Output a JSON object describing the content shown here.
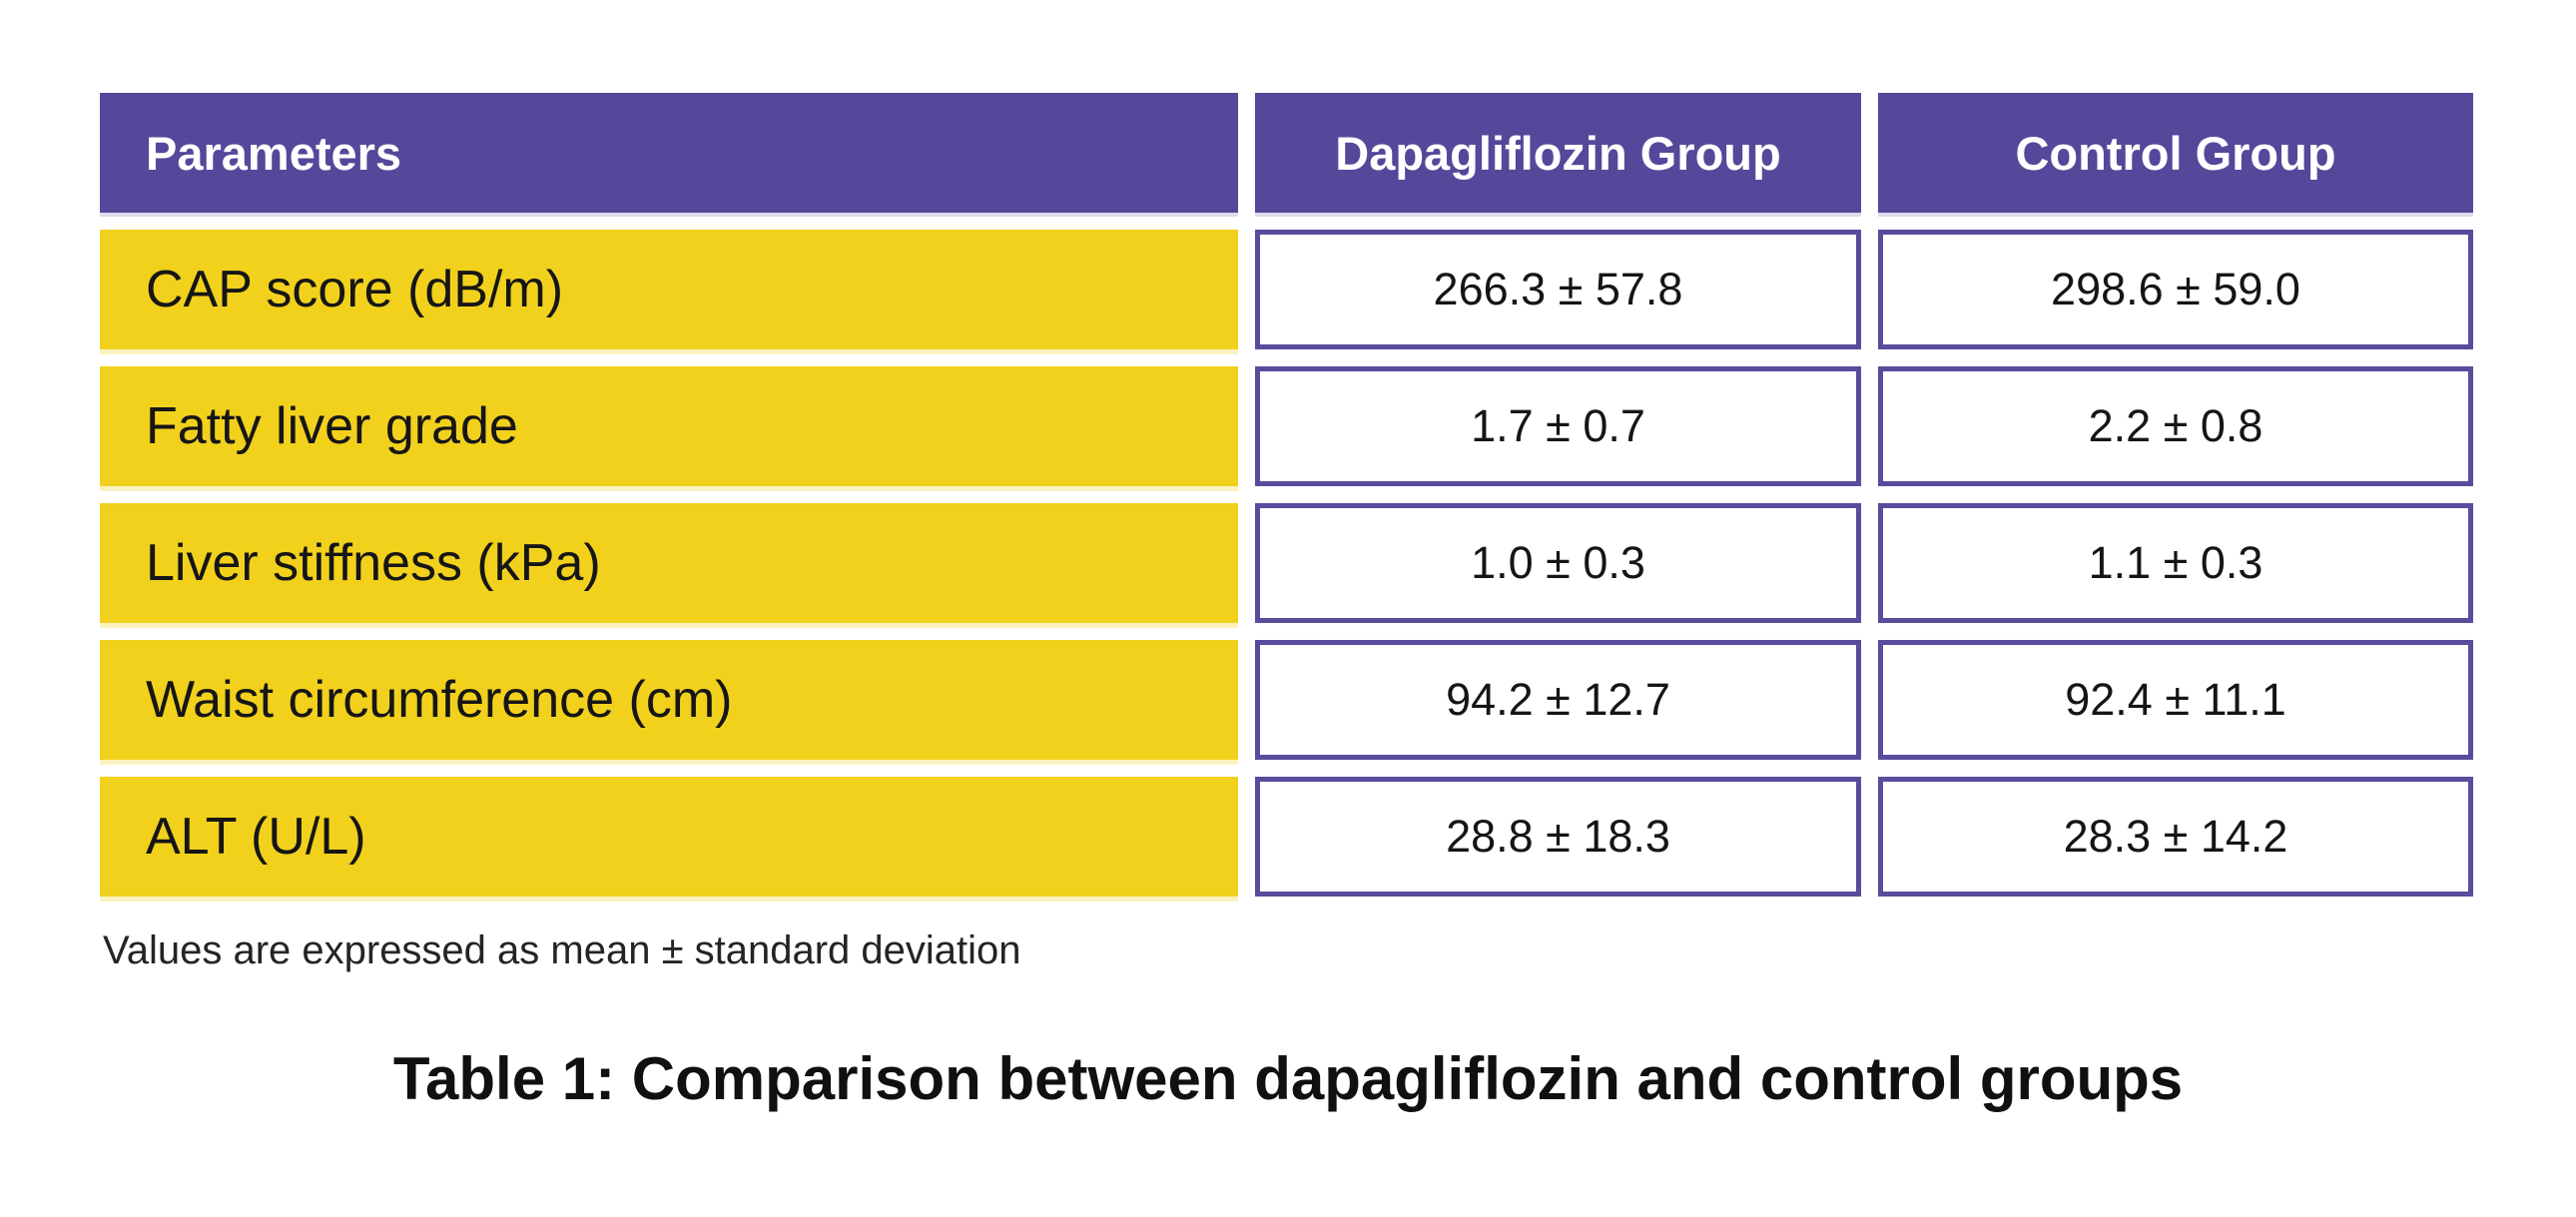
{
  "colors": {
    "page_background": "#FFFFFF",
    "header_purple": "#54489B",
    "border_purple": "#584C9C",
    "row_yellow": "#F2D11D"
  },
  "chart_data": {
    "type": "table",
    "title": "Table 1: Comparison between dapagliflozin and control groups",
    "columns": [
      "Parameters",
      "Dapagliflozin Group",
      "Control Group"
    ],
    "rows": [
      [
        "CAP score (dB/m)",
        "266.3 ± 57.8",
        "298.6 ± 59.0"
      ],
      [
        "Fatty liver grade",
        "1.7 ± 0.7",
        "2.2 ± 0.8"
      ],
      [
        "Liver stiffness (kPa)",
        "1.0 ± 0.3",
        "1.1 ± 0.3"
      ],
      [
        "Waist circumference (cm)",
        "94.2 ± 12.7",
        "92.4 ± 11.1"
      ],
      [
        "ALT (U/L)",
        "28.8 ± 18.3",
        "28.3 ± 14.2"
      ]
    ],
    "series": [
      {
        "name": "Dapagliflozin Group",
        "mean": [
          266.3,
          1.7,
          1.0,
          94.2,
          28.8
        ],
        "sd": [
          57.8,
          0.7,
          0.3,
          12.7,
          18.3
        ]
      },
      {
        "name": "Control Group",
        "mean": [
          298.6,
          2.2,
          1.1,
          92.4,
          28.3
        ],
        "sd": [
          59.0,
          0.8,
          0.3,
          11.1,
          14.2
        ]
      }
    ],
    "footnote": "Values are expressed as mean ± standard deviation"
  }
}
